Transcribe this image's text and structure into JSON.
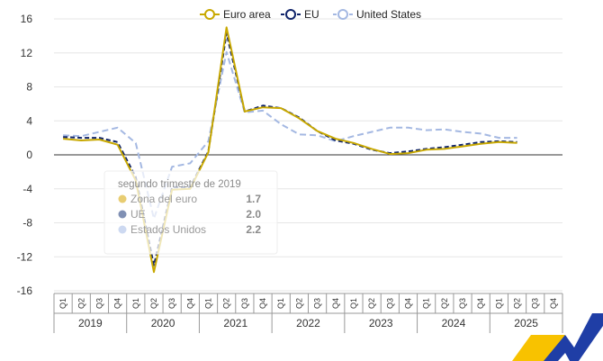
{
  "chart_data": {
    "type": "line",
    "ylim": [
      -16,
      16
    ],
    "yticks": [
      16,
      12,
      8,
      4,
      0,
      -4,
      -8,
      -12,
      -16
    ],
    "years": [
      "2019",
      "2020",
      "2021",
      "2022",
      "2023",
      "2024",
      "2025"
    ],
    "quarters": [
      "Q1",
      "Q2",
      "Q3",
      "Q4"
    ],
    "x": [
      "2019 Q1",
      "2019 Q2",
      "2019 Q3",
      "2019 Q4",
      "2020 Q1",
      "2020 Q2",
      "2020 Q3",
      "2020 Q4",
      "2021 Q1",
      "2021 Q2",
      "2021 Q3",
      "2021 Q4",
      "2022 Q1",
      "2022 Q2",
      "2022 Q3",
      "2022 Q4",
      "2023 Q1",
      "2023 Q2",
      "2023 Q3",
      "2023 Q4",
      "2024 Q1",
      "2024 Q2",
      "2024 Q3",
      "2024 Q4",
      "2025 Q1",
      "2025 Q2"
    ],
    "series": [
      {
        "name": "Euro area",
        "color": "#c8a800",
        "dash": "solid",
        "values": [
          1.9,
          1.7,
          1.8,
          1.2,
          -3.0,
          -13.8,
          -4.1,
          -4.0,
          0.3,
          15.0,
          5.1,
          5.6,
          5.5,
          4.3,
          2.8,
          1.9,
          1.4,
          0.7,
          0.1,
          0.2,
          0.6,
          0.7,
          1.0,
          1.3,
          1.5,
          1.4
        ]
      },
      {
        "name": "EU",
        "color": "#10246a",
        "dash": "dashed",
        "values": [
          2.1,
          2.0,
          2.0,
          1.5,
          -2.6,
          -13.0,
          -3.8,
          -3.8,
          0.4,
          14.3,
          5.1,
          5.8,
          5.5,
          4.4,
          2.8,
          1.7,
          1.3,
          0.6,
          0.2,
          0.4,
          0.7,
          0.9,
          1.2,
          1.5,
          1.6,
          1.5
        ]
      },
      {
        "name": "United States",
        "color": "#a4b8e2",
        "dash": "dashed",
        "values": [
          2.3,
          2.2,
          2.7,
          3.2,
          1.4,
          -7.5,
          -1.4,
          -1.0,
          1.6,
          12.1,
          5.0,
          5.2,
          3.6,
          2.4,
          2.3,
          1.6,
          2.2,
          2.7,
          3.2,
          3.2,
          2.9,
          3.0,
          2.7,
          2.5,
          2.0,
          2.0
        ]
      }
    ],
    "tooltip": {
      "title": "segundo trimestre de 2019",
      "rows": [
        {
          "label": "Zona del euro",
          "value": "1.7",
          "color": "#e8cd72"
        },
        {
          "label": "UE",
          "value": "2.0",
          "color": "#8090b4"
        },
        {
          "label": "Estados Unidos",
          "value": "2.2",
          "color": "#cdd9f1"
        }
      ]
    }
  },
  "logo": {
    "colors": [
      "#f8c200",
      "#1f3ea6"
    ]
  }
}
